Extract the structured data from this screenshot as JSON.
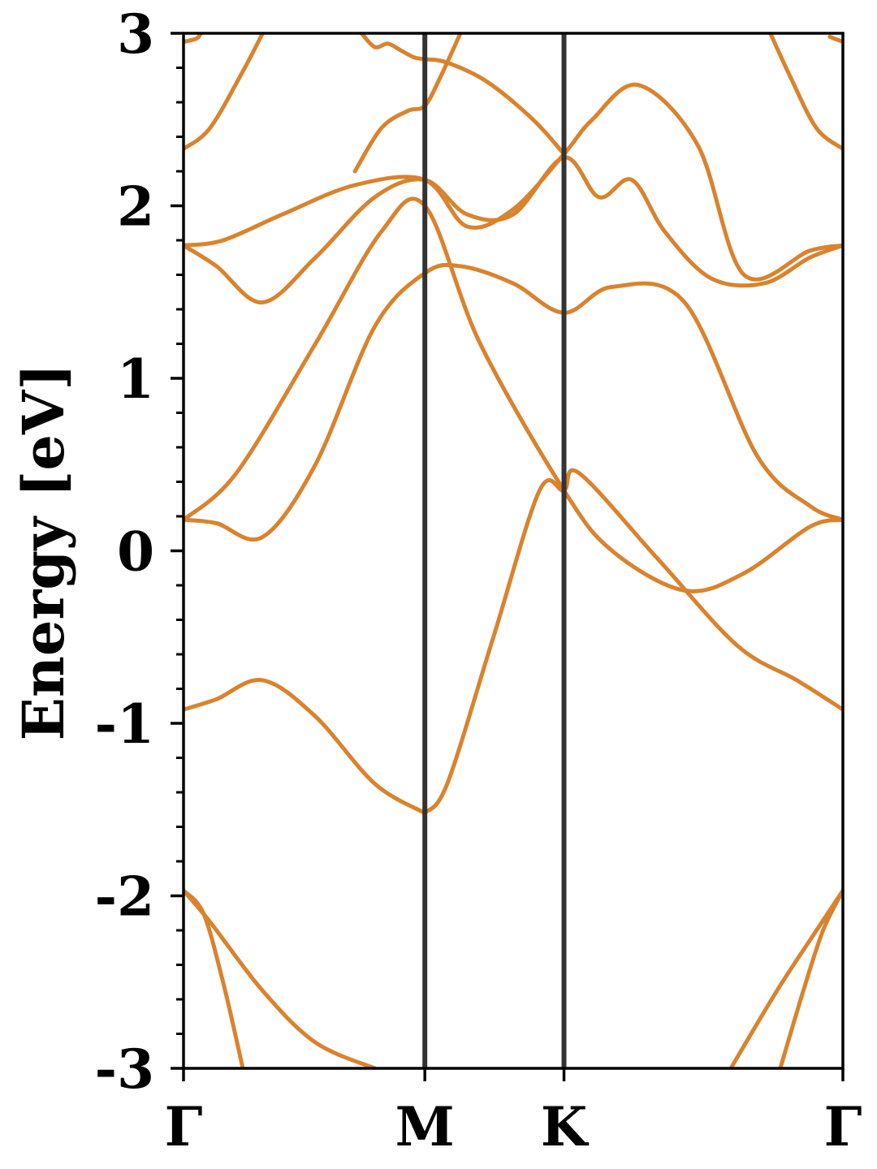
{
  "chart_data": {
    "type": "line",
    "title": "",
    "xlabel": "",
    "ylabel": "Energy [eV]",
    "ylim": [
      -3,
      3
    ],
    "xlim": [
      0,
      1
    ],
    "yticks": [
      -3,
      -2,
      -1,
      0,
      1,
      2,
      3
    ],
    "ytick_labels": [
      "-3",
      "-2",
      "-1",
      "0",
      "1",
      "2",
      "3"
    ],
    "minor_ytick_step": 0.2,
    "xticks": [
      {
        "label": "Γ",
        "x": 0.0
      },
      {
        "label": "M",
        "x": 0.366
      },
      {
        "label": "K",
        "x": 0.577
      },
      {
        "label": "Γ",
        "x": 1.0
      }
    ],
    "vlines": [
      0.366,
      0.577
    ],
    "grid": false,
    "band_color": "#D9832E",
    "vline_color": "#333333",
    "series": [
      {
        "x": [
          0.0,
          0.05,
          0.12,
          0.2,
          0.29,
          0.366
        ],
        "values": [
          -0.92,
          -0.86,
          -0.75,
          -0.96,
          -1.35,
          -1.52
        ]
      },
      {
        "x": [
          0.366,
          0.4,
          0.47,
          0.54,
          0.577,
          0.6,
          0.72,
          0.84,
          0.93,
          1.0
        ],
        "values": [
          -1.52,
          -1.35,
          -0.5,
          0.35,
          0.35,
          0.45,
          -0.05,
          -0.55,
          -0.75,
          -0.92
        ]
      },
      {
        "x": [
          0.0,
          0.05,
          0.12,
          0.2,
          0.29,
          0.366,
          0.42,
          0.5,
          0.577,
          0.65,
          0.76,
          0.87,
          0.95,
          1.0
        ],
        "values": [
          0.18,
          0.16,
          0.08,
          0.5,
          1.3,
          1.61,
          1.65,
          1.55,
          1.38,
          1.53,
          1.44,
          0.55,
          0.26,
          0.18
        ]
      },
      {
        "x": [
          0.0,
          0.08,
          0.2,
          0.3,
          0.366,
          0.45,
          0.577,
          0.65,
          0.76,
          0.85,
          0.95,
          1.0
        ],
        "values": [
          0.18,
          0.45,
          1.2,
          1.85,
          2.0,
          1.2,
          0.35,
          0.0,
          -0.23,
          -0.13,
          0.14,
          0.18
        ]
      },
      {
        "x": [
          0.0,
          0.05,
          0.12,
          0.2,
          0.29,
          0.366,
          0.43,
          0.5,
          0.577,
          0.63,
          0.68,
          0.73,
          0.8,
          0.88,
          0.95,
          1.0
        ],
        "values": [
          1.77,
          1.65,
          1.44,
          1.7,
          2.05,
          2.15,
          1.95,
          1.95,
          2.28,
          2.05,
          2.15,
          1.85,
          1.58,
          1.55,
          1.7,
          1.77
        ]
      },
      {
        "x": [
          0.0,
          0.06,
          0.15,
          0.26,
          0.366,
          0.43,
          0.5,
          0.577,
          0.62,
          0.69,
          0.78,
          0.85,
          0.95,
          1.0
        ],
        "values": [
          1.77,
          1.8,
          1.95,
          2.12,
          2.15,
          1.88,
          1.98,
          2.3,
          2.5,
          2.7,
          2.35,
          1.6,
          1.74,
          1.77
        ]
      },
      {
        "x": [
          0.0,
          0.04,
          0.09,
          0.12
        ],
        "values": [
          2.33,
          2.45,
          2.78,
          3.0
        ]
      },
      {
        "x": [
          0.26,
          0.3,
          0.34,
          0.366,
          0.39,
          0.42
        ],
        "values": [
          2.2,
          2.45,
          2.55,
          2.58,
          2.75,
          3.0
        ]
      },
      {
        "x": [
          0.27,
          0.29,
          0.31,
          0.33,
          0.35,
          0.366,
          0.4,
          0.46,
          0.53,
          0.577
        ],
        "values": [
          3.0,
          2.92,
          2.94,
          2.9,
          2.86,
          2.85,
          2.83,
          2.72,
          2.5,
          2.3
        ]
      },
      {
        "x": [
          0.0,
          0.02,
          0.026
        ],
        "values": [
          2.95,
          2.97,
          3.0
        ]
      },
      {
        "x": [
          0.89,
          0.92,
          0.96,
          1.0
        ],
        "values": [
          3.0,
          2.75,
          2.45,
          2.33
        ]
      },
      {
        "x": [
          0.98,
          1.0
        ],
        "values": [
          2.98,
          2.95
        ]
      },
      {
        "x": [
          0.0,
          0.03,
          0.06,
          0.09
        ],
        "values": [
          -1.97,
          -2.1,
          -2.5,
          -3.0
        ]
      },
      {
        "x": [
          0.0,
          0.04,
          0.12,
          0.2,
          0.29
        ],
        "values": [
          -1.97,
          -2.15,
          -2.55,
          -2.85,
          -3.0
        ]
      },
      {
        "x": [
          0.83,
          0.9,
          0.96,
          1.0
        ],
        "values": [
          -3.0,
          -2.55,
          -2.2,
          -1.97
        ]
      },
      {
        "x": [
          0.905,
          0.94,
          0.97,
          1.0
        ],
        "values": [
          -3.0,
          -2.55,
          -2.2,
          -1.97
        ]
      }
    ]
  }
}
